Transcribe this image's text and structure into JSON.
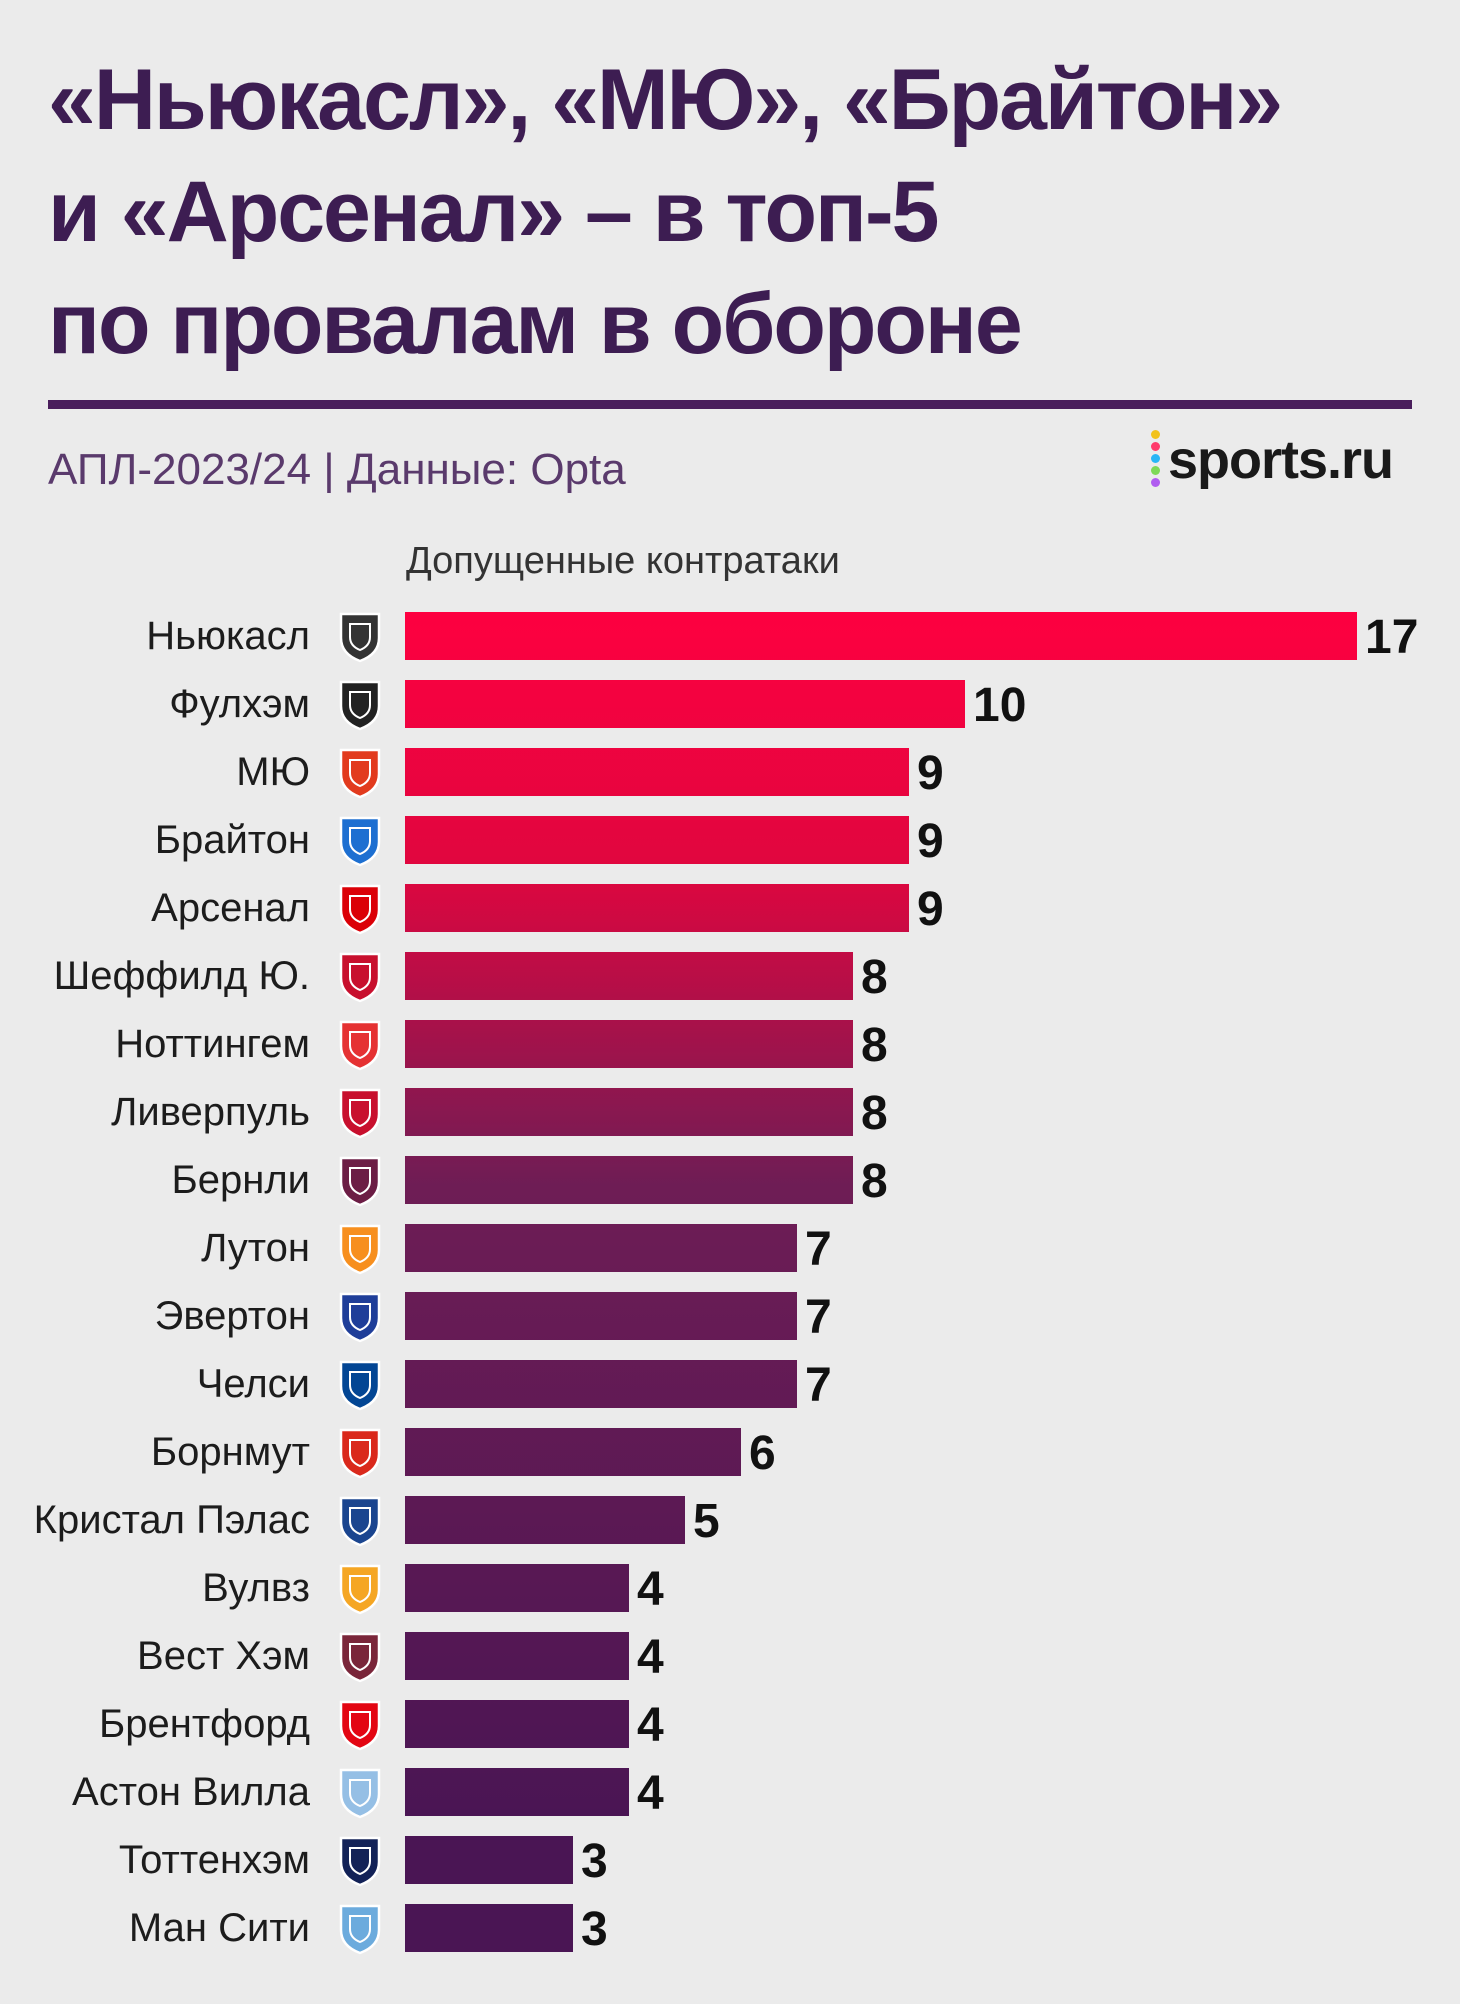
{
  "title": {
    "line1": "«Ньюкасл», «МЮ», «Брайтон»",
    "line2": "и «Арсенал» – в топ-5",
    "line3": "по провалам в обороне"
  },
  "subtitle": "АПЛ-2023/24 | Данные: Opta",
  "brand": {
    "text": "sports.ru",
    "dot_colors": [
      "#f2c21b",
      "#ff3b6b",
      "#29b6f6",
      "#7ed957",
      "#b05cf0"
    ]
  },
  "colors": {
    "title": "#3d1d52",
    "bar_top": "#ff0040",
    "bar_bottom": "#4a1554",
    "background": "#ebebeb"
  },
  "chart_data": {
    "type": "bar",
    "orientation": "horizontal",
    "xlabel": "Допущенные контратаки",
    "ylabel": "",
    "xlim": [
      0,
      17
    ],
    "grid": false,
    "legend": "none",
    "categories": [
      "Ньюкасл",
      "Фулхэм",
      "МЮ",
      "Брайтон",
      "Арсенал",
      "Шеффилд Ю.",
      "Ноттингем",
      "Ливерпуль",
      "Бернли",
      "Лутон",
      "Эвертон",
      "Челси",
      "Борнмут",
      "Кристал Пэлас",
      "Вулвз",
      "Вест Хэм",
      "Брентфорд",
      "Астон Вилла",
      "Тоттенхэм",
      "Ман Сити"
    ],
    "values": [
      17,
      10,
      9,
      9,
      9,
      8,
      8,
      8,
      8,
      7,
      7,
      7,
      6,
      5,
      4,
      4,
      4,
      4,
      3,
      3
    ],
    "icons": [
      "newcastle-crest-icon",
      "fulham-crest-icon",
      "man-united-crest-icon",
      "brighton-crest-icon",
      "arsenal-crest-icon",
      "sheffield-united-crest-icon",
      "nottingham-forest-crest-icon",
      "liverpool-crest-icon",
      "burnley-crest-icon",
      "luton-crest-icon",
      "everton-crest-icon",
      "chelsea-crest-icon",
      "bournemouth-crest-icon",
      "crystal-palace-crest-icon",
      "wolves-crest-icon",
      "west-ham-crest-icon",
      "brentford-crest-icon",
      "aston-villa-crest-icon",
      "tottenham-crest-icon",
      "man-city-crest-icon"
    ],
    "icon_colors": [
      "#333333",
      "#222222",
      "#e23b1e",
      "#1d6fd1",
      "#db0007",
      "#c8102e",
      "#e53233",
      "#c8102e",
      "#6c1d45",
      "#f78f1e",
      "#1f3e99",
      "#034694",
      "#da291c",
      "#1b458f",
      "#f5a623",
      "#7a263a",
      "#e30613",
      "#95bfe5",
      "#132257",
      "#6cabdd"
    ]
  }
}
